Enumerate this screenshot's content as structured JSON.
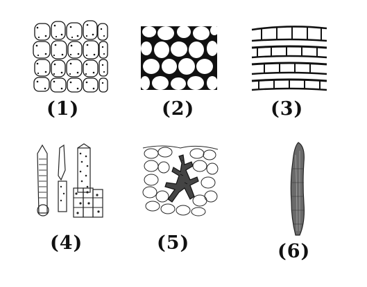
{
  "labels": {
    "p1": "(1)",
    "p2": "(2)",
    "p3": "(3)",
    "p4": "(4)",
    "p5": "(5)",
    "p6": "(6)"
  },
  "colors": {
    "ink": "#111111",
    "background": "#ffffff",
    "fiber": "#6a6a6a"
  }
}
